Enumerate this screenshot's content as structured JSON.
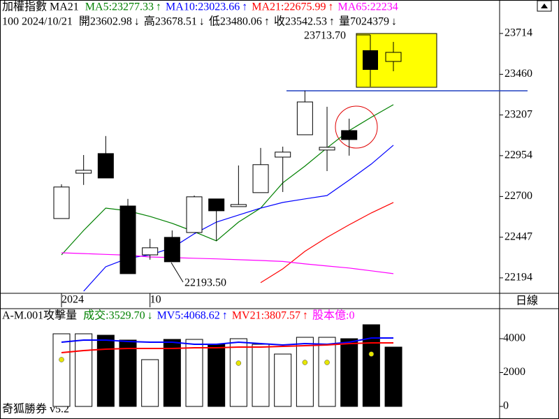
{
  "chart_data": [
    {
      "type": "candlestick",
      "legend_items": [
        {
          "text": "加權指數 MA21",
          "color": "#000000"
        },
        {
          "text": "MA5:23277.33",
          "arrow": "↑",
          "color": "#008000"
        },
        {
          "text": "MA10:23023.66",
          "arrow": "↑",
          "color": "#0000ff"
        },
        {
          "text": "MA21:22675.99",
          "arrow": "↑",
          "color": "#ff0000"
        },
        {
          "text": "MA65:22234",
          "color": "#ff00ff"
        }
      ],
      "info_items": [
        {
          "text": "100 2024/10/21"
        },
        {
          "text": "開23602.98",
          "arrow": "↓"
        },
        {
          "text": "高23678.51",
          "arrow": "↓"
        },
        {
          "text": "低23480.06",
          "arrow": "↑"
        },
        {
          "text": "收23542.53",
          "arrow": "↑"
        },
        {
          "text": "量7024379",
          "arrow": "↓"
        }
      ],
      "annotations": [
        "23713.70",
        "22193.50"
      ],
      "categories": [
        "2024",
        null,
        null,
        null,
        "10",
        null,
        null,
        null,
        null,
        null,
        null,
        null,
        null,
        null,
        null,
        null
      ],
      "open": [
        22563,
        22845,
        22967,
        22641,
        22337,
        22446,
        22476,
        22685,
        22637,
        22724,
        22945,
        23084,
        22989,
        23110,
        null,
        null
      ],
      "high": [
        22776,
        22958,
        23076,
        22685,
        22437,
        22489,
        22706,
        22685,
        22893,
        23002,
        23010,
        23358,
        23258,
        23184,
        null,
        null
      ],
      "low": [
        22563,
        22772,
        22815,
        22220,
        22307,
        22294,
        22476,
        22424,
        22637,
        22724,
        22728,
        23084,
        22858,
        22954,
        null,
        null
      ],
      "close": [
        22759,
        22863,
        22815,
        22220,
        22381,
        22294,
        22698,
        22611,
        22650,
        22898,
        22976,
        23288,
        23006,
        23054,
        null,
        null
      ],
      "series": [
        {
          "name": "MA5",
          "color": "#008000",
          "values": [
            22337,
            22489,
            22628,
            22611,
            22576,
            22533,
            22481,
            22424,
            22541,
            22628,
            22785,
            22889,
            23002,
            23110,
            23193,
            23271
          ]
        },
        {
          "name": "MA10",
          "color": "#0000ff",
          "values": [
            null,
            22111,
            22263,
            22316,
            22337,
            22381,
            22468,
            22541,
            22585,
            22628,
            22663,
            22685,
            22706,
            22802,
            22902,
            23019
          ]
        },
        {
          "name": "MA21",
          "color": "#ff0000",
          "values": [
            null,
            null,
            null,
            null,
            null,
            null,
            null,
            null,
            null,
            22164,
            22250,
            22359,
            22446,
            22524,
            22598,
            22663
          ]
        },
        {
          "name": "MA65",
          "color": "#ff00ff",
          "values": [
            22350,
            22345,
            22340,
            22335,
            22324,
            22320,
            22316,
            22312,
            22307,
            22302,
            22296,
            22281,
            22268,
            22255,
            22238,
            22220
          ]
        }
      ],
      "ylim": [
        22098,
        23922
      ],
      "yticks": [
        23714,
        23460,
        23207,
        22954,
        22700,
        22447,
        22194
      ],
      "period": "日線"
    },
    {
      "type": "bar",
      "legend_items": [
        {
          "text": "A-M.001攻擊量",
          "color": "#000000"
        },
        {
          "text": "成交:3529.70",
          "arrow": "↓",
          "color": "#008000"
        },
        {
          "text": "MV5:4068.62",
          "arrow": "↑",
          "color": "#0000ff"
        },
        {
          "text": "MV21:3807.57",
          "arrow": "↑",
          "color": "#ff0000"
        },
        {
          "text": "股本億:0",
          "color": "#ff00ff"
        }
      ],
      "values": [
        4289,
        4289,
        4206,
        3918,
        2763,
        3959,
        3959,
        3670,
        4000,
        3670,
        3093,
        4082,
        4082,
        4000,
        4825,
        3505
      ],
      "bar_colors": [
        "#ffffff",
        "#ffffff",
        "#000000",
        "#000000",
        "#ffffff",
        "#000000",
        "#ffffff",
        "#000000",
        "#ffffff",
        "#ffffff",
        "#ffffff",
        "#ffffff",
        "#ffffff",
        "#000000",
        "#000000",
        "#000000"
      ],
      "dots": {
        "color": "#e6e600",
        "values": [
          2763,
          null,
          null,
          null,
          null,
          null,
          null,
          null,
          2557,
          null,
          null,
          2598,
          2598,
          null,
          3093,
          null
        ]
      },
      "series": [
        {
          "name": "MV5",
          "color": "#0000ff",
          "values": [
            3794,
            3918,
            3918,
            3835,
            3794,
            3794,
            3670,
            3670,
            3794,
            3711,
            3629,
            3711,
            3670,
            3794,
            4041,
            4041
          ]
        },
        {
          "name": "MV21",
          "color": "#ff0000",
          "values": [
            3175,
            3299,
            3381,
            3423,
            3423,
            3423,
            3464,
            3464,
            3505,
            3505,
            3546,
            3588,
            3629,
            3711,
            3753,
            3753
          ]
        }
      ],
      "ylim": [
        -742,
        5773
      ],
      "yticks": [
        4000,
        2000,
        0
      ]
    }
  ],
  "app_label": "奇狐勝券 v5.2"
}
